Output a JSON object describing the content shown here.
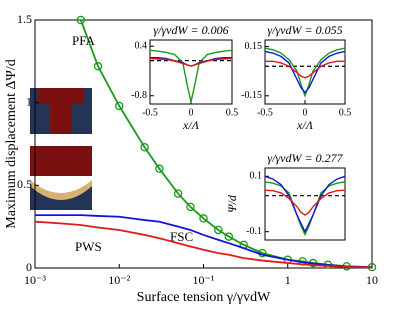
{
  "chart_data": [
    {
      "type": "line",
      "xscale": "log",
      "xlabel": "Surface tension γ/γvdW",
      "ylabel": "Maximum displacement ΔΨ/d",
      "xlim": [
        0.001,
        10
      ],
      "ylim": [
        0,
        1.5
      ],
      "xticks": [
        {
          "value": 0.001,
          "label": "10⁻³"
        },
        {
          "value": 0.01,
          "label": "10⁻²"
        },
        {
          "value": 0.1,
          "label": "10⁻¹"
        },
        1,
        10
      ],
      "yticks": [
        0,
        0.5,
        1,
        1.5
      ],
      "x": [
        0.001,
        0.002,
        0.0035,
        0.0056,
        0.01,
        0.02,
        0.03,
        0.05,
        0.07,
        0.1,
        0.15,
        0.2,
        0.3,
        0.5,
        1,
        1.5,
        2,
        3,
        5,
        10
      ],
      "series": [
        {
          "name": "PFA",
          "color": "#1a9a1a",
          "marker": "circle",
          "values": [
            null,
            null,
            1.5,
            1.22,
            0.98,
            0.73,
            0.6,
            0.45,
            0.37,
            0.3,
            0.23,
            0.19,
            0.14,
            0.09,
            0.05,
            0.04,
            0.03,
            0.02,
            0.01,
            0.005
          ]
        },
        {
          "name": "FSC",
          "color": "#1414d6",
          "values": [
            0.32,
            0.32,
            0.32,
            0.315,
            0.31,
            0.29,
            0.28,
            0.25,
            0.23,
            0.2,
            0.17,
            0.15,
            0.12,
            0.08,
            0.05,
            0.035,
            0.027,
            0.018,
            0.01,
            0.005
          ]
        },
        {
          "name": "PWS",
          "color": "#e01a1a",
          "values": [
            0.28,
            0.27,
            0.26,
            0.245,
            0.23,
            0.2,
            0.18,
            0.15,
            0.13,
            0.11,
            0.09,
            0.08,
            0.06,
            0.045,
            0.03,
            0.022,
            0.017,
            0.012,
            0.007,
            0.003
          ]
        }
      ]
    },
    {
      "type": "line",
      "title": "γ/γvdW = 0.006",
      "xlabel": "x/Λ",
      "xlim": [
        -0.5,
        0.5
      ],
      "ylim": [
        -1,
        0.55
      ],
      "xticks": [
        -0.5,
        0,
        0.5
      ],
      "yticks": [
        0.4,
        -0.8
      ],
      "reference_line": 0.05,
      "x": [
        -0.5,
        -0.4,
        -0.3,
        -0.2,
        -0.1,
        -0.05,
        0,
        0.05,
        0.1,
        0.2,
        0.3,
        0.4,
        0.5
      ],
      "series": [
        {
          "color": "#1a9a1a",
          "values": [
            0.3,
            0.28,
            0.25,
            0.2,
            0.0,
            -0.5,
            -0.95,
            -0.5,
            0.0,
            0.2,
            0.25,
            0.28,
            0.3
          ]
        },
        {
          "color": "#1414d6",
          "values": [
            0.12,
            0.12,
            0.1,
            0.05,
            0.0,
            -0.05,
            -0.08,
            -0.05,
            0.0,
            0.05,
            0.1,
            0.12,
            0.12
          ]
        },
        {
          "color": "#e01a1a",
          "values": [
            0.1,
            0.09,
            0.08,
            0.04,
            -0.02,
            -0.05,
            -0.08,
            -0.05,
            -0.02,
            0.04,
            0.08,
            0.09,
            0.1
          ]
        }
      ]
    },
    {
      "type": "line",
      "title": "γ/γvdW = 0.055",
      "xlabel": "x/Λ",
      "xlim": [
        -0.5,
        0.5
      ],
      "ylim": [
        -0.2,
        0.19
      ],
      "xticks": [
        -0.5,
        0,
        0.5
      ],
      "yticks": [
        0.15,
        -0.15
      ],
      "reference_line": 0.03,
      "x": [
        -0.5,
        -0.4,
        -0.3,
        -0.2,
        -0.1,
        -0.05,
        0,
        0.05,
        0.1,
        0.2,
        0.3,
        0.4,
        0.5
      ],
      "series": [
        {
          "color": "#1a9a1a",
          "values": [
            0.14,
            0.13,
            0.11,
            0.07,
            0.0,
            -0.08,
            -0.15,
            -0.08,
            0.0,
            0.07,
            0.11,
            0.13,
            0.14
          ]
        },
        {
          "color": "#1414d6",
          "values": [
            0.12,
            0.11,
            0.09,
            0.05,
            -0.05,
            -0.1,
            -0.13,
            -0.1,
            -0.05,
            0.05,
            0.09,
            0.11,
            0.12
          ]
        },
        {
          "color": "#e01a1a",
          "values": [
            0.06,
            0.06,
            0.05,
            0.03,
            -0.01,
            -0.03,
            -0.04,
            -0.03,
            -0.01,
            0.03,
            0.05,
            0.06,
            0.06
          ]
        }
      ]
    },
    {
      "type": "line",
      "title": "γ/γvdW = 0.277",
      "ylabel": "Ψ/d",
      "xlim": [
        -0.5,
        0.5
      ],
      "ylim": [
        -0.13,
        0.13
      ],
      "yticks": [
        0.1,
        -0.1
      ],
      "reference_line": 0.03,
      "x": [
        -0.5,
        -0.4,
        -0.3,
        -0.2,
        -0.1,
        -0.05,
        0,
        0.05,
        0.1,
        0.2,
        0.3,
        0.4,
        0.5
      ],
      "series": [
        {
          "color": "#1a9a1a",
          "values": [
            0.08,
            0.075,
            0.065,
            0.04,
            -0.04,
            -0.08,
            -0.11,
            -0.08,
            -0.04,
            0.04,
            0.065,
            0.075,
            0.08
          ]
        },
        {
          "color": "#1414d6",
          "values": [
            0.1,
            0.09,
            0.07,
            0.03,
            -0.04,
            -0.07,
            -0.1,
            -0.07,
            -0.04,
            0.03,
            0.07,
            0.09,
            0.1
          ]
        },
        {
          "color": "#e01a1a",
          "values": [
            0.05,
            0.048,
            0.04,
            0.02,
            -0.01,
            -0.03,
            -0.04,
            -0.03,
            -0.01,
            0.02,
            0.04,
            0.048,
            0.05
          ]
        }
      ]
    }
  ]
}
